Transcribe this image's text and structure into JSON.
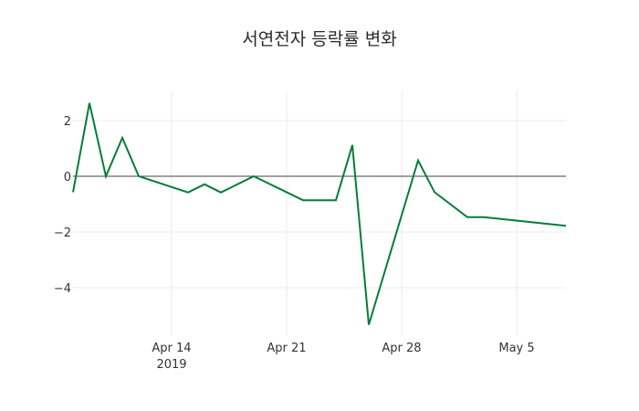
{
  "chart_data": {
    "type": "line",
    "title": "서연전자 등락률 변화",
    "xlabel": "",
    "ylabel": "",
    "x": [
      "2019-04-08",
      "2019-04-09",
      "2019-04-10",
      "2019-04-11",
      "2019-04-12",
      "2019-04-15",
      "2019-04-16",
      "2019-04-17",
      "2019-04-19",
      "2019-04-22",
      "2019-04-23",
      "2019-04-24",
      "2019-04-25",
      "2019-04-26",
      "2019-04-29",
      "2019-04-30",
      "2019-05-02",
      "2019-05-03",
      "2019-05-08"
    ],
    "series": [
      {
        "name": "등락률",
        "color": "#047d3b",
        "values": [
          -0.57,
          2.63,
          0.0,
          1.38,
          0.0,
          -0.58,
          -0.29,
          -0.58,
          0.0,
          -0.86,
          -0.86,
          -0.86,
          1.12,
          -5.33,
          0.57,
          -0.57,
          -1.47,
          -1.47,
          -1.78
        ]
      }
    ],
    "ylim": [
      -5.6,
      3.0
    ],
    "yticks": [
      2,
      0,
      -2,
      -4
    ],
    "ytick_labels": [
      "2",
      "0",
      "−2",
      "−4"
    ],
    "xticks": [
      "Apr 14\n2019",
      "Apr 21",
      "Apr 28",
      "May 5"
    ],
    "grid": true,
    "legend": false
  },
  "xtick_labels": [
    {
      "line1": "Apr 14",
      "line2": "2019"
    },
    {
      "line1": "Apr 21",
      "line2": ""
    },
    {
      "line1": "Apr 28",
      "line2": ""
    },
    {
      "line1": "May 5",
      "line2": ""
    }
  ]
}
